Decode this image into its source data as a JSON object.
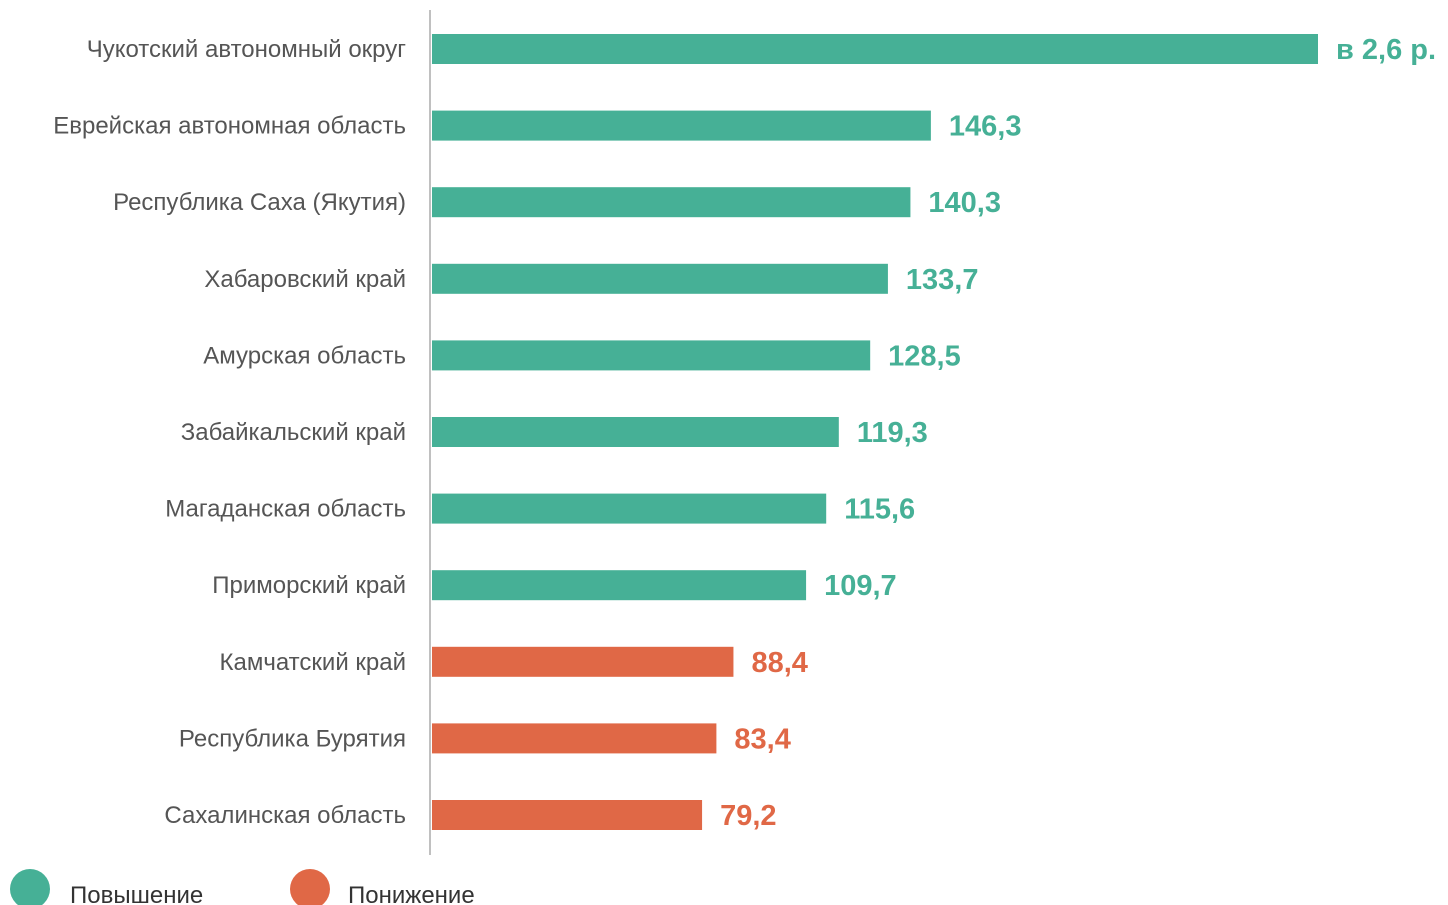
{
  "chart_data": {
    "type": "bar",
    "orientation": "horizontal",
    "categories": [
      "Чукотский автономный округ",
      "Еврейская автономная область",
      "Республика Саха (Якутия)",
      "Хабаровский край",
      "Амурская область",
      "Забайкальский край",
      "Магаданская область",
      "Приморский край",
      "Камчатский край",
      "Республика Бурятия",
      "Сахалинская область"
    ],
    "values": [
      260,
      146.3,
      140.3,
      133.7,
      128.5,
      119.3,
      115.6,
      109.7,
      88.4,
      83.4,
      79.2
    ],
    "value_labels": [
      "в 2,6 р.",
      "146,3",
      "140,3",
      "133,7",
      "128,5",
      "119,3",
      "115,6",
      "109,7",
      "88,4",
      "83,4",
      "79,2"
    ],
    "direction": [
      "up",
      "up",
      "up",
      "up",
      "up",
      "up",
      "up",
      "up",
      "down",
      "down",
      "down"
    ],
    "legend": [
      {
        "key": "up",
        "label": "Повышение",
        "color": "#46b096"
      },
      {
        "key": "down",
        "label": "Понижение",
        "color": "#e06846"
      }
    ],
    "legend_position": "bottom-left",
    "grid": false
  }
}
